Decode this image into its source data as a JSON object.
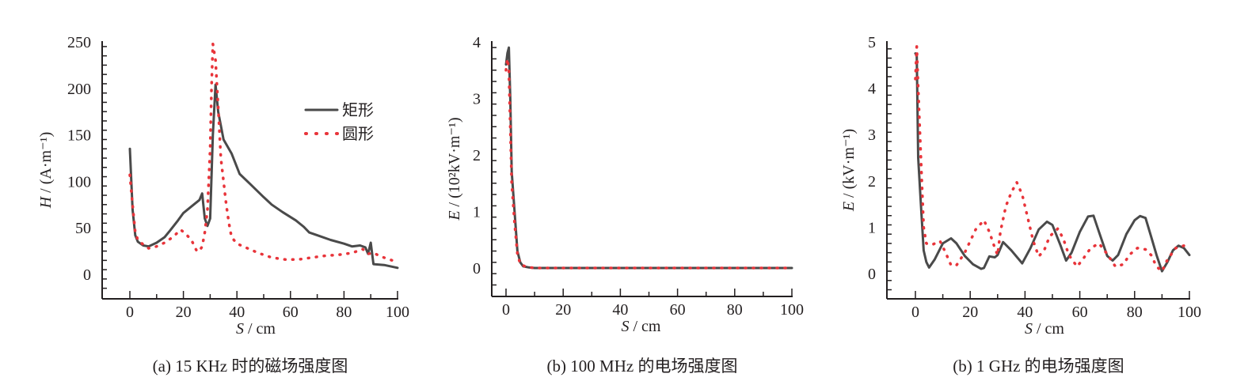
{
  "chart_data": [
    {
      "type": "line",
      "caption": "(a)  15 KHz 时的磁场强度图",
      "xlabel_var": "S",
      "xlabel_unit": " / cm",
      "ylabel_var": "H",
      "ylabel_unit": " / (A·m⁻¹)",
      "xlim": [
        -10,
        100
      ],
      "ylim": [
        -25,
        250
      ],
      "xticks": [
        0,
        20,
        40,
        60,
        80,
        100
      ],
      "yticks": [
        0,
        50,
        100,
        150,
        200,
        250
      ],
      "legend": {
        "position": "top-right",
        "entries": [
          "矩形",
          "圆形"
        ]
      },
      "series": [
        {
          "name": "矩形",
          "style": "solid",
          "color": "#4a4a4a",
          "x": [
            0,
            1,
            2,
            3,
            5,
            7,
            10,
            13,
            15,
            18,
            20,
            23,
            26,
            27,
            28,
            29,
            30,
            31,
            32,
            33,
            35,
            38,
            41,
            45,
            50,
            53,
            57,
            62,
            65,
            67,
            70,
            75,
            80,
            83,
            86,
            88,
            89,
            90,
            91,
            95,
            100
          ],
          "y": [
            135,
            70,
            42,
            35,
            31,
            30,
            34,
            40,
            47,
            58,
            66,
            73,
            80,
            87,
            60,
            52,
            60,
            150,
            204,
            175,
            145,
            130,
            108,
            97,
            83,
            75,
            67,
            58,
            51,
            45,
            42,
            37,
            33,
            30,
            31,
            29,
            22,
            34,
            11,
            10,
            7
          ]
        },
        {
          "name": "圆形",
          "style": "dotted",
          "color": "#e8343a",
          "x": [
            0,
            1,
            2,
            3,
            5,
            7,
            10,
            13,
            16,
            19,
            21,
            23,
            25,
            26,
            27,
            28,
            29,
            30,
            30.5,
            31,
            32,
            33,
            34,
            35,
            36,
            37,
            38,
            40,
            44,
            48,
            53,
            58,
            63,
            68,
            73,
            78,
            83,
            87,
            89,
            91,
            94,
            100
          ],
          "y": [
            107,
            75,
            45,
            37,
            32,
            28,
            30,
            34,
            40,
            48,
            43,
            37,
            25,
            25,
            30,
            45,
            70,
            135,
            200,
            248,
            230,
            180,
            125,
            100,
            75,
            55,
            40,
            33,
            28,
            23,
            18,
            16,
            16,
            18,
            20,
            21,
            23,
            27,
            22,
            23,
            19,
            13
          ]
        }
      ]
    },
    {
      "type": "line",
      "caption": "(b)  100 MHz 的电场强度图",
      "xlabel_var": "S",
      "xlabel_unit": " / cm",
      "ylabel_var": "E",
      "ylabel_unit": " / (10²kV·m⁻¹)",
      "xlim": [
        -10,
        100
      ],
      "ylim": [
        -0.5,
        4
      ],
      "xticks": [
        0,
        20,
        40,
        60,
        80,
        100
      ],
      "yticks": [
        0,
        1,
        2,
        3,
        4
      ],
      "series": [
        {
          "name": "矩形",
          "style": "solid",
          "color": "#4a4a4a",
          "x": [
            0,
            0.5,
            1,
            1.5,
            2,
            3,
            4,
            5,
            6,
            8,
            10,
            100
          ],
          "y": [
            3.6,
            3.8,
            3.9,
            3.0,
            1.7,
            1.0,
            0.3,
            0.1,
            0.03,
            0.01,
            0,
            0
          ]
        },
        {
          "name": "圆形",
          "style": "dotted",
          "color": "#e8343a",
          "x": [
            0,
            0.5,
            1,
            2,
            3,
            4,
            5,
            7,
            10,
            100
          ],
          "y": [
            3.5,
            3.7,
            3.5,
            1.5,
            0.8,
            0.25,
            0.07,
            0.02,
            0,
            0
          ]
        }
      ]
    },
    {
      "type": "line",
      "caption": "(b)  1 GHz 的电场强度图",
      "xlabel_var": "S",
      "xlabel_unit": " / cm",
      "ylabel_var": "E",
      "ylabel_unit": " / (kV·m⁻¹)",
      "xlim": [
        -10,
        100
      ],
      "ylim": [
        -0.55,
        5
      ],
      "xticks": [
        0,
        20,
        40,
        60,
        80,
        100
      ],
      "yticks": [
        0,
        1,
        2,
        3,
        4,
        5
      ],
      "series": [
        {
          "name": "矩形",
          "style": "solid",
          "color": "#4a4a4a",
          "x": [
            0,
            0.5,
            1,
            2,
            3,
            4,
            5,
            7,
            10,
            13,
            15,
            18,
            21,
            24,
            25,
            27,
            29,
            30,
            32,
            35,
            39,
            42,
            45,
            48,
            50,
            53,
            55,
            57,
            60,
            63,
            65,
            67,
            70,
            72,
            74,
            77,
            80,
            82,
            84,
            86,
            88,
            90,
            92,
            94,
            96,
            98,
            100
          ],
          "y": [
            4.75,
            4.7,
            2.5,
            1.5,
            0.5,
            0.25,
            0.13,
            0.3,
            0.65,
            0.76,
            0.65,
            0.38,
            0.2,
            0.1,
            0.12,
            0.37,
            0.35,
            0.4,
            0.68,
            0.5,
            0.22,
            0.55,
            0.95,
            1.12,
            1.05,
            0.6,
            0.28,
            0.45,
            0.9,
            1.23,
            1.25,
            0.9,
            0.38,
            0.28,
            0.4,
            0.85,
            1.15,
            1.24,
            1.2,
            0.8,
            0.4,
            0.05,
            0.25,
            0.5,
            0.6,
            0.55,
            0.4
          ]
        },
        {
          "name": "圆形",
          "style": "dotted",
          "color": "#e8343a",
          "x": [
            0,
            0.5,
            1,
            2,
            3,
            4,
            6,
            9,
            11,
            13,
            15,
            18,
            20,
            22,
            25,
            27,
            29,
            30,
            31,
            33,
            35,
            37,
            39,
            41,
            43,
            45,
            47,
            49,
            52,
            54,
            56,
            59,
            61,
            64,
            67,
            70,
            73,
            76,
            78,
            81,
            84,
            86,
            88,
            90,
            92,
            95,
            98,
            100
          ],
          "y": [
            4.2,
            4.9,
            4.0,
            2.5,
            1.0,
            0.65,
            0.62,
            0.7,
            0.45,
            0.18,
            0.18,
            0.45,
            0.7,
            0.95,
            1.15,
            0.9,
            0.55,
            0.4,
            0.9,
            1.45,
            1.75,
            1.97,
            1.7,
            1.2,
            0.7,
            0.37,
            0.5,
            0.8,
            0.97,
            0.75,
            0.4,
            0.15,
            0.3,
            0.55,
            0.65,
            0.42,
            0.15,
            0.2,
            0.4,
            0.55,
            0.52,
            0.4,
            0.15,
            0.05,
            0.3,
            0.55,
            0.6,
            0.55
          ]
        }
      ]
    }
  ]
}
